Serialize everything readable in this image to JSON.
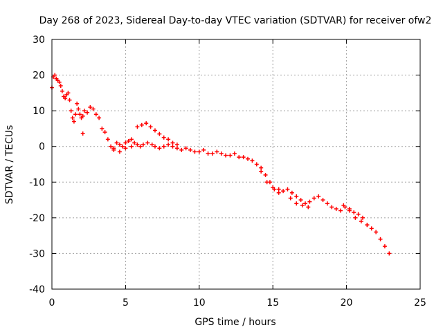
{
  "chart_data": {
    "type": "scatter",
    "title": "Day 268 of 2023, Sidereal Day-to-day VTEC variation (SDTVAR) for receiver ofw2",
    "xlabel": "GPS time / hours",
    "ylabel": "SDTVAR / TECUs",
    "xlim": [
      0,
      25
    ],
    "ylim": [
      -40,
      30
    ],
    "xticks": [
      0,
      5,
      10,
      15,
      20,
      25
    ],
    "yticks": [
      -40,
      -30,
      -20,
      -10,
      0,
      10,
      20,
      30
    ],
    "grid": true,
    "marker": "+",
    "colors": {
      "series": "#ff0000",
      "grid": "#a0a0a0",
      "axis": "#000000"
    },
    "series": [
      {
        "name": "SDTVAR",
        "x": [
          0.0,
          0.1,
          0.2,
          0.3,
          0.4,
          0.5,
          0.6,
          0.7,
          0.8,
          0.9,
          1.0,
          1.1,
          1.2,
          1.3,
          1.4,
          1.5,
          1.6,
          1.7,
          1.8,
          1.9,
          2.0,
          2.1,
          2.2,
          2.4,
          2.6,
          2.8,
          3.0,
          3.2,
          3.4,
          3.6,
          3.8,
          4.0,
          4.2,
          4.4,
          4.6,
          4.8,
          5.0,
          5.2,
          5.4,
          5.6,
          5.8,
          6.0,
          6.2,
          6.5,
          6.8,
          7.0,
          7.3,
          7.6,
          7.9,
          8.2,
          8.5,
          8.8,
          9.1,
          9.4,
          9.7,
          10.0,
          10.3,
          10.6,
          10.9,
          11.2,
          11.5,
          11.8,
          12.1,
          12.4,
          12.7,
          13.0,
          13.3,
          13.6,
          13.9,
          14.2,
          14.5,
          14.8,
          15.1,
          15.4,
          15.7,
          16.0,
          16.3,
          16.6,
          16.9,
          17.2,
          17.5,
          17.8,
          18.1,
          18.4,
          18.7,
          19.0,
          19.3,
          19.6,
          19.9,
          20.2,
          20.5,
          20.8,
          21.1,
          21.4,
          21.7,
          22.0,
          22.3,
          22.6,
          22.9,
          5.8,
          6.1,
          6.4,
          6.7,
          7.0,
          7.3,
          7.6,
          7.9,
          8.2,
          8.5,
          4.2,
          4.6,
          5.0,
          5.4,
          14.2,
          14.6,
          15.0,
          15.4,
          16.2,
          16.6,
          17.0,
          17.4,
          19.8,
          20.2,
          20.6,
          21.0,
          21.4,
          2.1
        ],
        "y": [
          16.5,
          19.5,
          20.0,
          19.0,
          18.5,
          18.0,
          17.0,
          15.5,
          14.0,
          13.5,
          14.5,
          15.0,
          13.0,
          10.0,
          8.0,
          7.0,
          9.0,
          12.0,
          10.5,
          9.0,
          8.0,
          8.5,
          10.0,
          9.5,
          11.0,
          10.5,
          9.0,
          8.0,
          5.0,
          4.0,
          2.0,
          0.0,
          -1.0,
          1.0,
          0.5,
          0.0,
          1.0,
          1.5,
          2.0,
          1.0,
          0.5,
          0.0,
          0.5,
          1.0,
          0.5,
          0.0,
          -0.5,
          0.0,
          0.5,
          0.0,
          -0.5,
          -1.0,
          -0.5,
          -1.0,
          -1.5,
          -1.5,
          -1.0,
          -2.0,
          -2.0,
          -1.5,
          -2.0,
          -2.5,
          -2.5,
          -2.0,
          -3.0,
          -3.0,
          -3.5,
          -4.0,
          -5.0,
          -6.0,
          -8.0,
          -10.0,
          -12.0,
          -13.0,
          -12.5,
          -12.0,
          -13.0,
          -14.0,
          -15.0,
          -16.0,
          -15.5,
          -14.5,
          -14.0,
          -15.0,
          -16.0,
          -17.0,
          -17.5,
          -18.0,
          -17.0,
          -17.5,
          -18.5,
          -19.0,
          -20.0,
          -22.0,
          -23.0,
          -24.0,
          -26.0,
          -28.0,
          -30.0,
          5.5,
          6.0,
          6.5,
          5.5,
          4.5,
          3.5,
          2.5,
          2.0,
          1.0,
          0.5,
          -0.5,
          -1.5,
          -0.5,
          0.0,
          -7.0,
          -10.0,
          -11.5,
          -12.0,
          -14.5,
          -16.0,
          -16.5,
          -17.0,
          -16.5,
          -18.0,
          -20.0,
          -21.0,
          -22.0,
          3.6
        ]
      }
    ]
  }
}
